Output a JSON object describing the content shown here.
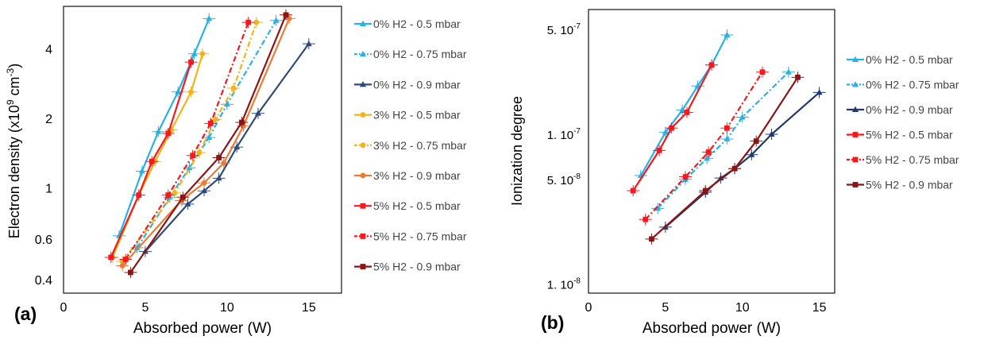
{
  "colors": {
    "light_blue": "#27b1e6",
    "dark_blue": "#2e4a7a",
    "navy": "#1f3870",
    "orange_yellow": "#f6b21b",
    "orange": "#ea7b35",
    "red": "#f5181c",
    "dark_red": "#8c1414",
    "frame": "#222222"
  },
  "chart_data": [
    {
      "type": "line",
      "panel_label": "(a)",
      "xlabel": "Absorbed power (W)",
      "ylabel_prefix": "Electron density (x10",
      "ylabel_exp1": "9",
      "ylabel_mid": " cm",
      "ylabel_exp2": "-3",
      "ylabel_suffix": ")",
      "ylabel": "Electron density (x10^9 cm^-3)",
      "xlim": [
        0,
        17
      ],
      "ylim": [
        0.35,
        6.1
      ],
      "yscale": "log",
      "x_ticks": [
        "0",
        "5",
        "10",
        "15"
      ],
      "x_tick_values": [
        0,
        5,
        10,
        15
      ],
      "y_ticks": [
        "0.4",
        "0.6",
        "1",
        "2",
        "4"
      ],
      "y_tick_values": [
        0.4,
        0.6,
        1,
        2,
        4
      ],
      "grid": false,
      "legend_position": "right",
      "series": [
        {
          "name": "0% H2 - 0.5 mbar",
          "color": "light_blue",
          "dash": "solid",
          "marker": "triangle",
          "x": [
            3.4,
            4.8,
            5.8,
            7.0,
            8.0,
            8.9
          ],
          "y": [
            0.62,
            1.18,
            1.75,
            2.6,
            3.8,
            5.4
          ]
        },
        {
          "name": "0% H2 - 0.75 mbar",
          "color": "light_blue",
          "dash": "dashdot",
          "marker": "triangle",
          "x": [
            4.5,
            6.5,
            7.7,
            8.9,
            10.0,
            13.0
          ],
          "y": [
            0.55,
            0.91,
            1.22,
            1.65,
            2.3,
            5.3
          ]
        },
        {
          "name": "0% H2 - 0.9 mbar",
          "color": "dark_blue",
          "dash": "solid",
          "marker": "triangle",
          "x": [
            5.0,
            7.6,
            8.6,
            9.5,
            10.6,
            11.9,
            15.0
          ],
          "y": [
            0.53,
            0.85,
            0.97,
            1.1,
            1.5,
            2.1,
            4.2
          ]
        },
        {
          "name": "3% H2 - 0.5 mbar",
          "color": "orange_yellow",
          "dash": "solid",
          "marker": "circle",
          "x": [
            3.0,
            4.6,
            5.6,
            6.6,
            7.8,
            8.5
          ],
          "y": [
            0.5,
            0.93,
            1.3,
            1.78,
            2.6,
            3.8
          ]
        },
        {
          "name": "3% H2 - 0.75 mbar",
          "color": "orange_yellow",
          "dash": "dashdot",
          "marker": "circle",
          "x": [
            3.6,
            6.8,
            8.3,
            9.3,
            10.4,
            11.8
          ],
          "y": [
            0.48,
            0.95,
            1.42,
            1.98,
            2.7,
            5.2
          ]
        },
        {
          "name": "3% H2 - 0.9 mbar",
          "color": "orange",
          "dash": "solid",
          "marker": "circle",
          "x": [
            3.6,
            7.2,
            8.6,
            9.8,
            11.0,
            13.8
          ],
          "y": [
            0.46,
            0.88,
            1.05,
            1.28,
            1.85,
            5.4
          ]
        },
        {
          "name": "5% H2 - 0.5 mbar",
          "color": "red",
          "dash": "solid",
          "marker": "square",
          "x": [
            2.9,
            4.6,
            5.4,
            6.4,
            7.8
          ],
          "y": [
            0.5,
            0.93,
            1.3,
            1.72,
            3.5
          ]
        },
        {
          "name": "5% H2 - 0.75 mbar",
          "color": "red",
          "dash": "dashdot",
          "marker": "square",
          "x": [
            3.8,
            6.4,
            7.9,
            9.0,
            11.3
          ],
          "y": [
            0.49,
            0.93,
            1.38,
            1.9,
            5.2
          ]
        },
        {
          "name": "5% H2 - 0.9 mbar",
          "color": "dark_red",
          "dash": "solid",
          "marker": "square",
          "x": [
            4.1,
            7.3,
            9.5,
            10.9,
            13.6
          ],
          "y": [
            0.43,
            0.91,
            1.35,
            1.92,
            5.6
          ]
        }
      ]
    },
    {
      "type": "line",
      "panel_label": "(b)",
      "xlabel": "Absorbed power (W)",
      "ylabel": "Ionization degree",
      "xlim": [
        0,
        16
      ],
      "ylim": [
        8.7e-09,
        6.8e-07
      ],
      "yscale": "log",
      "x_ticks": [
        "0",
        "5",
        "10",
        "15"
      ],
      "x_tick_values": [
        0,
        5,
        10,
        15
      ],
      "y_ticks": [
        "1. 10",
        "5. 10",
        "1. 10",
        "5. 10"
      ],
      "y_tick_exponents": [
        "-8",
        "-8",
        "-7",
        "-7"
      ],
      "y_tick_values": [
        1e-08,
        5e-08,
        1e-07,
        5e-07
      ],
      "grid": false,
      "legend_position": "right",
      "series": [
        {
          "name": "0% H2 - 0.5 mbar",
          "color": "light_blue",
          "dash": "solid",
          "marker": "triangle",
          "x": [
            3.4,
            5.0,
            6.1,
            7.1,
            8.0,
            9.0
          ],
          "y": [
            5.3e-08,
            1.03e-07,
            1.45e-07,
            2.1e-07,
            2.9e-07,
            4.6e-07
          ]
        },
        {
          "name": "0% H2 - 0.75 mbar",
          "color": "light_blue",
          "dash": "dashdot",
          "marker": "triangle",
          "x": [
            4.5,
            6.3,
            7.7,
            9.0,
            10.0,
            13.0
          ],
          "y": [
            3.2e-08,
            5e-08,
            6.9e-08,
            9.3e-08,
            1.3e-07,
            2.6e-07
          ]
        },
        {
          "name": "0% H2 - 0.9 mbar",
          "color": "navy",
          "dash": "solid",
          "marker": "triangle",
          "x": [
            5.0,
            7.6,
            8.6,
            9.5,
            10.6,
            11.9,
            15.0
          ],
          "y": [
            2.4e-08,
            4.1e-08,
            5.1e-08,
            5.9e-08,
            7.3e-08,
            1e-07,
            1.9e-07
          ]
        },
        {
          "name": "5% H2 - 0.5 mbar",
          "color": "red",
          "dash": "solid",
          "marker": "square",
          "x": [
            2.9,
            4.6,
            5.4,
            6.4,
            8.0
          ],
          "y": [
            4.2e-08,
            7.8e-08,
            1.1e-07,
            1.4e-07,
            2.9e-07
          ]
        },
        {
          "name": "5% H2 - 0.75 mbar",
          "color": "red",
          "dash": "dashdot",
          "marker": "square",
          "x": [
            3.7,
            6.3,
            7.8,
            9.0,
            11.3
          ],
          "y": [
            2.7e-08,
            5.2e-08,
            7.6e-08,
            1.1e-07,
            2.6e-07
          ]
        },
        {
          "name": "5% H2 - 0.9 mbar",
          "color": "dark_red",
          "dash": "solid",
          "marker": "square",
          "x": [
            4.1,
            7.6,
            9.5,
            10.9,
            13.6
          ],
          "y": [
            2e-08,
            4.2e-08,
            5.9e-08,
            9e-08,
            2.4e-07
          ]
        }
      ]
    }
  ]
}
